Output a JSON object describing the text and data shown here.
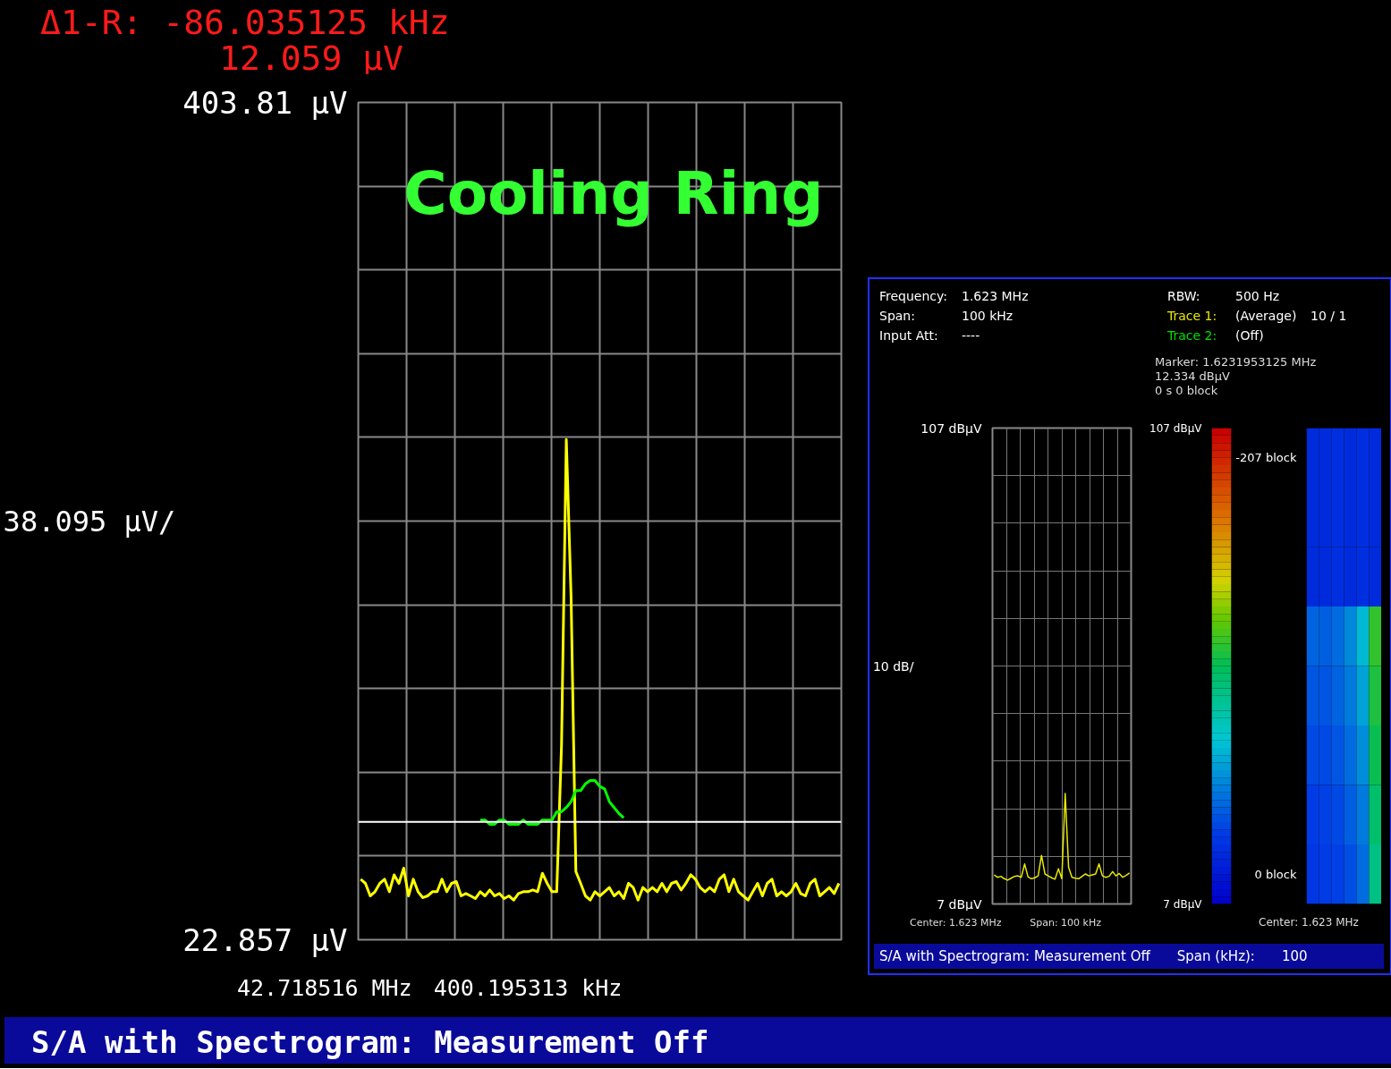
{
  "chart_data": [
    {
      "type": "line",
      "title": "Cooling Ring",
      "tick_labels": "y",
      "grid": true,
      "categories": [
        null,
        null,
        null,
        null,
        null,
        null,
        null,
        null,
        null,
        null,
        null,
        null,
        null,
        null,
        null,
        null,
        null,
        null,
        null,
        null,
        null,
        null,
        null,
        null,
        null,
        null,
        null,
        null,
        null,
        null,
        null,
        null,
        null,
        null,
        null,
        null,
        null,
        null,
        null,
        null,
        null,
        null,
        null,
        null,
        null,
        null,
        null,
        null,
        null,
        null,
        null,
        null,
        null,
        null,
        null,
        null,
        null,
        null,
        null,
        null,
        null,
        null,
        null,
        null,
        null,
        null,
        null,
        null,
        null,
        null,
        null,
        null,
        null,
        null,
        null,
        null,
        null,
        null,
        null,
        null,
        null,
        null,
        null,
        null,
        null,
        null,
        null,
        null,
        null,
        null,
        null,
        null,
        null,
        null,
        null,
        null,
        null,
        null,
        null,
        null,
        null
      ],
      "ylim": [
        22.857,
        403.81
      ],
      "yticks": [
        {
          "value": 22.857,
          "label": "22.857 µV"
        },
        {
          "value": 60.952,
          "label": null
        },
        {
          "value": 99.047,
          "label": null
        },
        {
          "value": 137.142,
          "label": null
        },
        {
          "value": 175.237,
          "label": null
        },
        {
          "value": 213.333,
          "label": null
        },
        {
          "value": 251.428,
          "label": null
        },
        {
          "value": 289.523,
          "label": null
        },
        {
          "value": 327.619,
          "label": null
        },
        {
          "value": 365.714,
          "label": null
        },
        {
          "value": 403.81,
          "label": "403.81 µV"
        }
      ],
      "series": [
        {
          "color": "#ffff00",
          "values": [
            50.4,
            48.5,
            42.8,
            44.7,
            48.5,
            50.4,
            44.7,
            52.4,
            48.5,
            55.4,
            42.8,
            50.4,
            44.7,
            42.0,
            42.8,
            44.7,
            44.7,
            50.4,
            44.7,
            48.5,
            49.3,
            42.8,
            43.9,
            42.8,
            41.6,
            44.7,
            42.8,
            45.5,
            42.8,
            43.9,
            41.6,
            42.8,
            40.9,
            43.9,
            44.7,
            44.7,
            45.5,
            44.7,
            53.1,
            48.5,
            44.7,
            44.7,
            111.4,
            250.5,
            178.8,
            53.9,
            48.5,
            42.8,
            40.9,
            44.7,
            42.8,
            44.7,
            46.6,
            42.8,
            44.7,
            41.6,
            48.5,
            46.6,
            40.9,
            46.6,
            44.7,
            46.6,
            44.7,
            48.5,
            44.7,
            48.5,
            49.3,
            45.5,
            48.5,
            52.4,
            50.4,
            46.6,
            44.7,
            46.6,
            44.7,
            50.4,
            52.4,
            44.7,
            50.4,
            44.7,
            42.8,
            40.9,
            44.7,
            48.5,
            42.8,
            48.5,
            50.4,
            42.8,
            44.7,
            42.8,
            44.7,
            48.5,
            43.9,
            42.8,
            48.5,
            50.4,
            42.8,
            44.7,
            46.6,
            43.9,
            48.5
          ]
        },
        {
          "color": "#00ff00",
          "values": [
            null,
            null,
            null,
            null,
            null,
            null,
            null,
            null,
            null,
            null,
            null,
            null,
            null,
            null,
            null,
            null,
            null,
            null,
            null,
            null,
            null,
            null,
            null,
            null,
            null,
            77.3,
            77.3,
            75.4,
            75.4,
            77.3,
            77.3,
            75.4,
            75.4,
            75.4,
            77.3,
            75.4,
            75.4,
            75.4,
            77.3,
            77.3,
            77.3,
            81.1,
            81.1,
            83.0,
            85.7,
            90.7,
            90.7,
            93.8,
            95.3,
            95.3,
            92.6,
            91.5,
            85.7,
            83.0,
            80.3,
            78.4,
            null,
            null,
            null,
            null,
            null,
            null,
            null,
            null,
            null,
            null,
            null,
            null,
            null,
            null,
            null,
            null,
            null,
            null,
            null,
            null,
            null,
            null,
            null,
            null,
            null,
            null,
            null,
            null,
            null,
            null,
            null,
            null,
            null,
            null,
            null,
            null,
            null,
            null,
            null,
            null,
            null,
            null,
            null,
            null,
            null
          ]
        }
      ],
      "ref_lines": [
        {
          "axis": "y",
          "value": 76.5,
          "color": "#ffffff"
        }
      ],
      "annotations": [
        "Δ1-R: -86.035125 kHz",
        "12.059 µV",
        "38.095 µV/",
        "42.718516 MHz",
        "400.195313 kHz",
        "S/A with Spectrogram: Measurement Off"
      ]
    },
    {
      "type": "line",
      "tick_labels": "y",
      "grid": true,
      "categories": [
        null,
        null,
        null,
        null,
        null,
        null,
        null,
        null,
        null,
        null,
        null,
        null,
        null,
        null,
        null,
        null,
        null,
        null,
        null,
        null,
        null,
        null,
        null,
        null,
        null,
        null,
        null,
        null,
        null,
        null,
        null,
        null,
        null,
        null,
        null,
        null,
        null,
        null,
        null,
        null,
        null
      ],
      "ylim": [
        7,
        107
      ],
      "yticks": [
        {
          "value": 7,
          "label": "7 dBµV"
        },
        {
          "value": 17,
          "label": null
        },
        {
          "value": 27,
          "label": null
        },
        {
          "value": 37,
          "label": null
        },
        {
          "value": 47,
          "label": null
        },
        {
          "value": 57,
          "label": null
        },
        {
          "value": 67,
          "label": null
        },
        {
          "value": 77,
          "label": null
        },
        {
          "value": 87,
          "label": null
        },
        {
          "value": 97,
          "label": null
        },
        {
          "value": 107,
          "label": "107 dBµV"
        }
      ],
      "series": [
        {
          "color": "#e8e800",
          "values": [
            13.1,
            12.6,
            12.8,
            12.3,
            12.0,
            12.4,
            12.8,
            12.9,
            12.6,
            15.4,
            12.7,
            12.3,
            12.5,
            12.9,
            17.2,
            13.3,
            12.9,
            12.5,
            12.2,
            14.4,
            12.3,
            30.2,
            14.7,
            12.6,
            12.4,
            12.3,
            12.8,
            13.3,
            12.9,
            13.1,
            13.3,
            15.4,
            12.9,
            12.6,
            12.8,
            13.8,
            12.9,
            13.4,
            12.6,
            13.0,
            13.5
          ]
        }
      ],
      "annotations": [
        "Frequency:",
        "1.623 MHz",
        "Span:",
        "100 kHz",
        "Input Att:",
        "----",
        "RBW:",
        "500 Hz",
        "Trace 1:",
        "(Average)",
        "10 / 1",
        "Trace 2:",
        "(Off)",
        "10 dB/",
        "Center: 1.623 MHz",
        "Span: 100 kHz",
        "S/A with Spectrogram: Measurement Off"
      ]
    },
    {
      "type": "heatmap",
      "categories": [
        null,
        null,
        null,
        null,
        null,
        null
      ],
      "y_categories": [
        "-207 block",
        null,
        null,
        null,
        null,
        null,
        null,
        "0 block"
      ],
      "cells": [
        [
          18,
          18,
          19,
          18,
          19,
          18
        ],
        [
          18,
          18,
          19,
          18,
          19,
          18
        ],
        [
          18,
          18,
          19,
          18,
          19,
          18
        ],
        [
          28,
          27,
          29,
          33,
          40,
          62
        ],
        [
          26,
          26,
          28,
          31,
          37,
          60
        ],
        [
          24,
          24,
          26,
          29,
          34,
          58
        ],
        [
          22,
          23,
          24,
          27,
          31,
          55
        ],
        [
          21,
          22,
          23,
          25,
          29,
          52
        ]
      ],
      "clim": [
        7,
        107
      ],
      "cticks": [
        {
          "value": 7,
          "label": "7 dBµV"
        },
        {
          "value": 107,
          "label": "107 dBµV"
        }
      ],
      "annotations": [
        "Marker: 1.6231953125 MHz",
        "12.334 dBµV",
        "0 s  0 block",
        "Center: 1.623 MHz",
        "Span (kHz):",
        "100"
      ]
    }
  ]
}
